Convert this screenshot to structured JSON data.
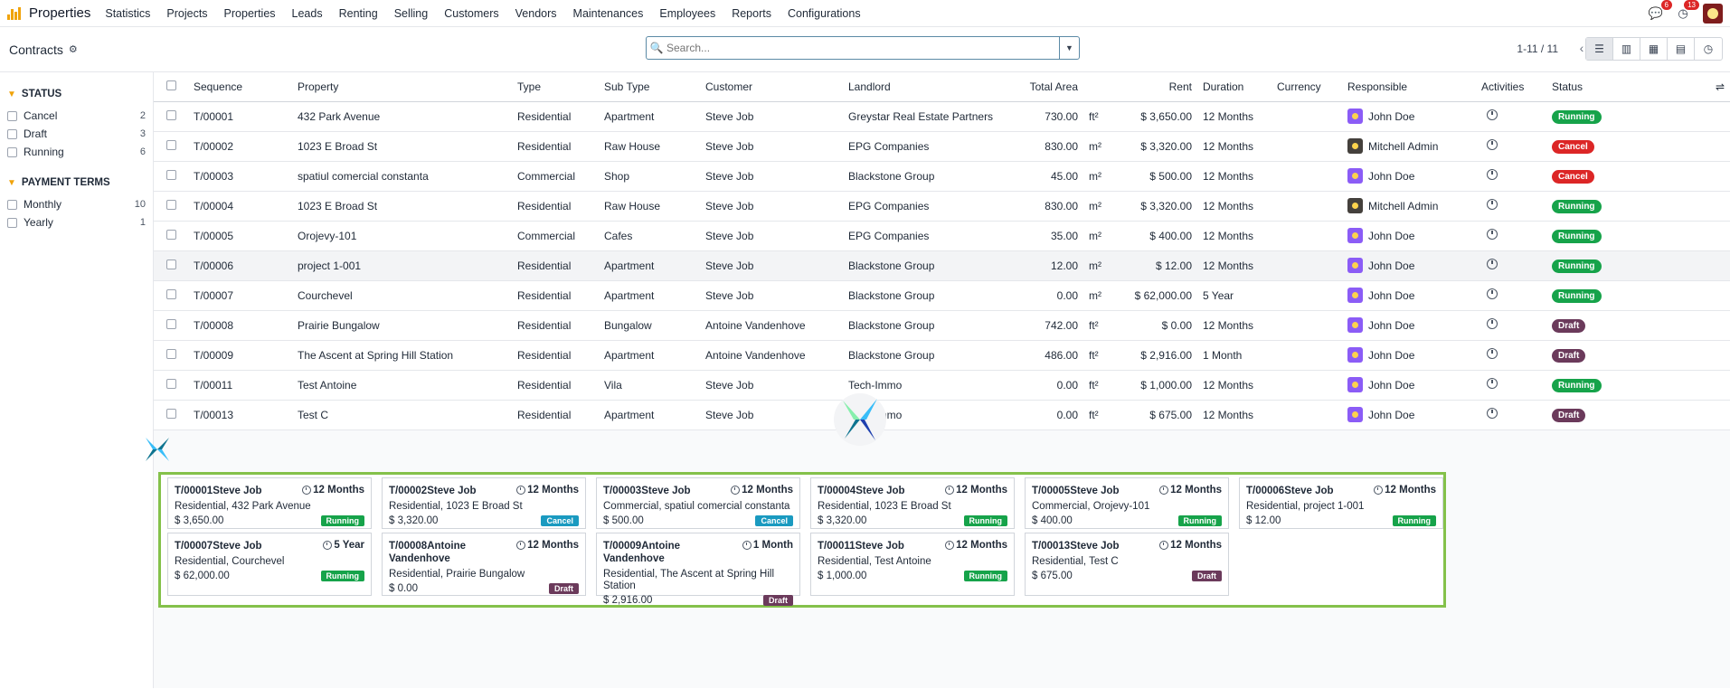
{
  "nav": {
    "app_name": "Properties",
    "menu": [
      "Statistics",
      "Projects",
      "Properties",
      "Leads",
      "Renting",
      "Selling",
      "Customers",
      "Vendors",
      "Maintenances",
      "Employees",
      "Reports",
      "Configurations"
    ],
    "messages_count": "6",
    "activities_count": "13"
  },
  "control": {
    "breadcrumb": "Contracts",
    "search_placeholder": "Search...",
    "pager": "1-11 / 11"
  },
  "filters": {
    "status_title": "STATUS",
    "status": [
      {
        "label": "Cancel",
        "count": "2"
      },
      {
        "label": "Draft",
        "count": "3"
      },
      {
        "label": "Running",
        "count": "6"
      }
    ],
    "terms_title": "PAYMENT TERMS",
    "terms": [
      {
        "label": "Monthly",
        "count": "10"
      },
      {
        "label": "Yearly",
        "count": "1"
      }
    ]
  },
  "table": {
    "headers": {
      "sequence": "Sequence",
      "property": "Property",
      "type": "Type",
      "subtype": "Sub Type",
      "customer": "Customer",
      "landlord": "Landlord",
      "area": "Total Area",
      "rent": "Rent",
      "duration": "Duration",
      "currency": "Currency",
      "responsible": "Responsible",
      "activities": "Activities",
      "status": "Status"
    },
    "rows": [
      {
        "seq": "T/00001",
        "property": "432 Park Avenue",
        "type": "Residential",
        "subtype": "Apartment",
        "customer": "Steve Job",
        "landlord": "Greystar Real Estate Partners",
        "area": "730.00",
        "unit": "ft²",
        "rent": "$ 3,650.00",
        "duration": "12 Months",
        "currency": "",
        "responsible": "John Doe",
        "status": "Running"
      },
      {
        "seq": "T/00002",
        "property": "1023 E Broad St",
        "type": "Residential",
        "subtype": "Raw House",
        "customer": "Steve Job",
        "landlord": "EPG Companies",
        "area": "830.00",
        "unit": "m²",
        "rent": "$ 3,320.00",
        "duration": "12 Months",
        "currency": "",
        "responsible": "Mitchell Admin",
        "status": "Cancel"
      },
      {
        "seq": "T/00003",
        "property": "spatiul comercial constanta",
        "type": "Commercial",
        "subtype": "Shop",
        "customer": "Steve Job",
        "landlord": "Blackstone Group",
        "area": "45.00",
        "unit": "m²",
        "rent": "$ 500.00",
        "duration": "12 Months",
        "currency": "",
        "responsible": "John Doe",
        "status": "Cancel"
      },
      {
        "seq": "T/00004",
        "property": "1023 E Broad St",
        "type": "Residential",
        "subtype": "Raw House",
        "customer": "Steve Job",
        "landlord": "EPG Companies",
        "area": "830.00",
        "unit": "m²",
        "rent": "$ 3,320.00",
        "duration": "12 Months",
        "currency": "",
        "responsible": "Mitchell Admin",
        "status": "Running"
      },
      {
        "seq": "T/00005",
        "property": "Orojevy-101",
        "type": "Commercial",
        "subtype": "Cafes",
        "customer": "Steve Job",
        "landlord": "EPG Companies",
        "area": "35.00",
        "unit": "m²",
        "rent": "$ 400.00",
        "duration": "12 Months",
        "currency": "",
        "responsible": "John Doe",
        "status": "Running"
      },
      {
        "seq": "T/00006",
        "property": "project 1-001",
        "type": "Residential",
        "subtype": "Apartment",
        "customer": "Steve Job",
        "landlord": "Blackstone Group",
        "area": "12.00",
        "unit": "m²",
        "rent": "$ 12.00",
        "duration": "12 Months",
        "currency": "",
        "responsible": "John Doe",
        "status": "Running"
      },
      {
        "seq": "T/00007",
        "property": "Courchevel",
        "type": "Residential",
        "subtype": "Apartment",
        "customer": "Steve Job",
        "landlord": "Blackstone Group",
        "area": "0.00",
        "unit": "m²",
        "rent": "$ 62,000.00",
        "duration": "5 Year",
        "currency": "",
        "responsible": "John Doe",
        "status": "Running"
      },
      {
        "seq": "T/00008",
        "property": "Prairie Bungalow",
        "type": "Residential",
        "subtype": "Bungalow",
        "customer": "Antoine Vandenhove",
        "landlord": "Blackstone Group",
        "area": "742.00",
        "unit": "ft²",
        "rent": "$ 0.00",
        "duration": "12 Months",
        "currency": "",
        "responsible": "John Doe",
        "status": "Draft"
      },
      {
        "seq": "T/00009",
        "property": "The Ascent at Spring Hill Station",
        "type": "Residential",
        "subtype": "Apartment",
        "customer": "Antoine Vandenhove",
        "landlord": "Blackstone Group",
        "area": "486.00",
        "unit": "ft²",
        "rent": "$ 2,916.00",
        "duration": "1 Month",
        "currency": "",
        "responsible": "John Doe",
        "status": "Draft"
      },
      {
        "seq": "T/00011",
        "property": "Test Antoine",
        "type": "Residential",
        "subtype": "Vila",
        "customer": "Steve Job",
        "landlord": "Tech-Immo",
        "area": "0.00",
        "unit": "ft²",
        "rent": "$ 1,000.00",
        "duration": "12 Months",
        "currency": "",
        "responsible": "John Doe",
        "status": "Running"
      },
      {
        "seq": "T/00013",
        "property": "Test C",
        "type": "Residential",
        "subtype": "Apartment",
        "customer": "Steve Job",
        "landlord": "Tech-Immo",
        "area": "0.00",
        "unit": "ft²",
        "rent": "$ 675.00",
        "duration": "12 Months",
        "currency": "",
        "responsible": "John Doe",
        "status": "Draft"
      }
    ]
  },
  "cards": [
    {
      "title": "T/00001Steve Job",
      "duration": "12 Months",
      "line1": "Residential, 432 Park Avenue",
      "rent": "$ 3,650.00",
      "status": "Running"
    },
    {
      "title": "T/00002Steve Job",
      "duration": "12 Months",
      "line1": "Residential, 1023 E Broad St",
      "rent": "$ 3,320.00",
      "status": "Cancel"
    },
    {
      "title": "T/00003Steve Job",
      "duration": "12 Months",
      "line1": "Commercial, spatiul comercial constanta",
      "rent": "$ 500.00",
      "status": "Cancel"
    },
    {
      "title": "T/00004Steve Job",
      "duration": "12 Months",
      "line1": "Residential, 1023 E Broad St",
      "rent": "$ 3,320.00",
      "status": "Running"
    },
    {
      "title": "T/00005Steve Job",
      "duration": "12 Months",
      "line1": "Commercial, Orojevy-101",
      "rent": "$ 400.00",
      "status": "Running"
    },
    {
      "title": "T/00006Steve Job",
      "duration": "12 Months",
      "line1": "Residential, project 1-001",
      "rent": "$ 12.00",
      "status": "Running"
    },
    {
      "title": "T/00007Steve Job",
      "duration": "5 Year",
      "line1": "Residential, Courchevel",
      "rent": "$ 62,000.00",
      "status": "Running"
    },
    {
      "title": "T/00008Antoine Vandenhove",
      "duration": "12 Months",
      "line1": "Residential, Prairie Bungalow",
      "rent": "$ 0.00",
      "status": "Draft"
    },
    {
      "title": "T/00009Antoine Vandenhove",
      "duration": "1 Month",
      "line1": "Residential, The Ascent at Spring Hill Station",
      "rent": "$ 2,916.00",
      "status": "Draft"
    },
    {
      "title": "T/00011Steve Job",
      "duration": "12 Months",
      "line1": "Residential, Test Antoine",
      "rent": "$ 1,000.00",
      "status": "Running"
    },
    {
      "title": "T/00013Steve Job",
      "duration": "12 Months",
      "line1": "Residential, Test C",
      "rent": "$ 675.00",
      "status": "Draft"
    }
  ],
  "colors": {
    "running": "#16a34a",
    "cancel_badge": "#dc2626",
    "cancel_card": "#1a9ac0",
    "draft": "#6b3a5b",
    "kanban_border": "#84c14a",
    "brand": "#f0a30a"
  }
}
